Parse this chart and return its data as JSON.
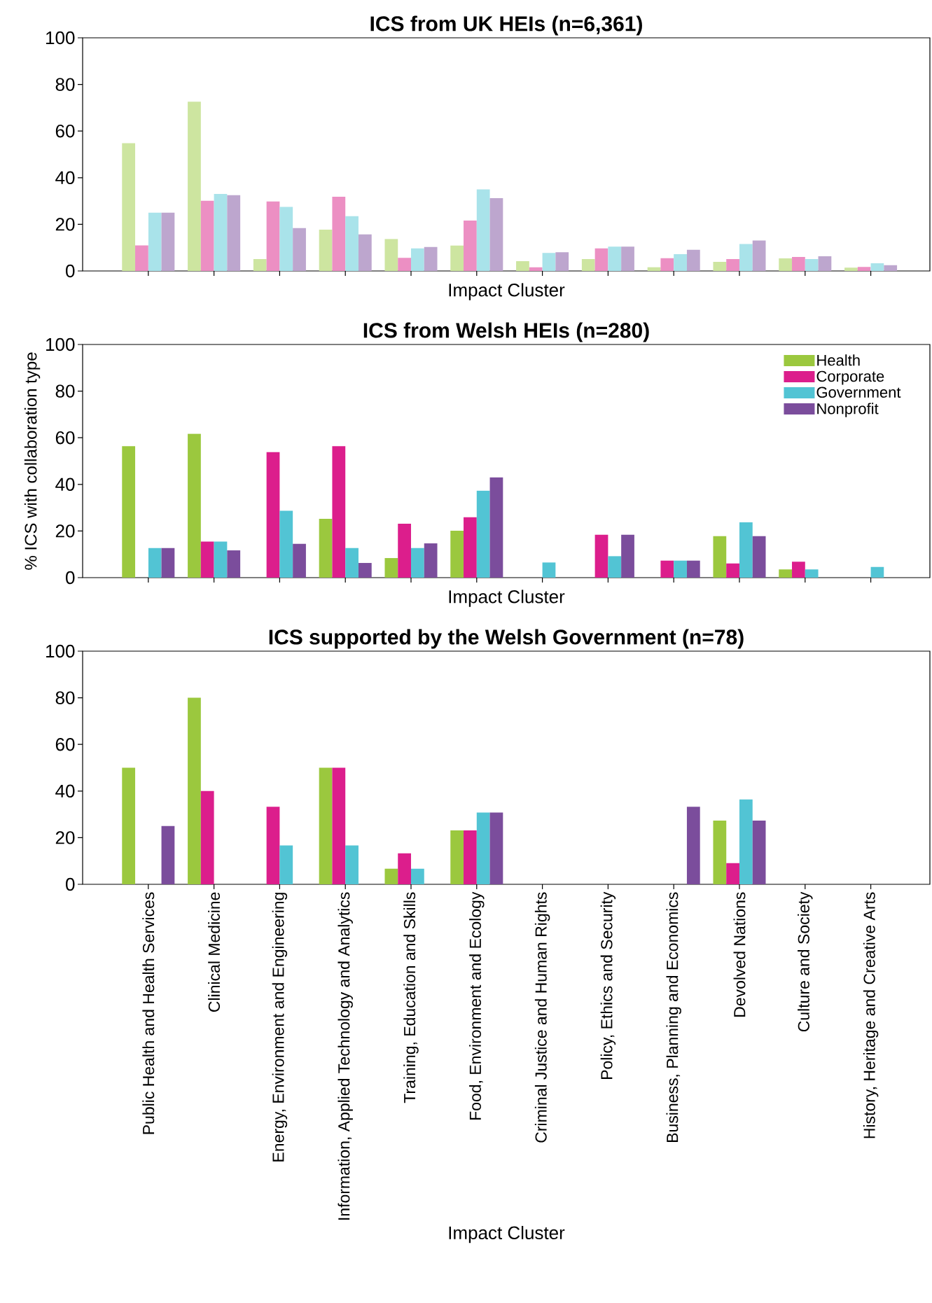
{
  "chart_data": [
    {
      "type": "bar",
      "title": "ICS from UK HEIs (n=6,361)",
      "xlabel": "Impact Cluster",
      "categories": [
        null,
        null,
        null,
        null,
        null,
        null,
        null,
        null,
        null,
        null,
        null,
        null
      ],
      "ylim": [
        0,
        100
      ],
      "yticks": [
        0,
        20,
        40,
        60,
        80,
        100
      ],
      "tick_labels": "y",
      "series": [
        {
          "color": "#cde5a0",
          "values": [
            54.8,
            72.6,
            5.1,
            17.7,
            13.7,
            10.9,
            4.2,
            5.1,
            1.6,
            3.9,
            5.4,
            1.4
          ]
        },
        {
          "color": "#ec8fc3",
          "values": [
            11,
            30.1,
            29.8,
            31.8,
            5.6,
            21.6,
            1.6,
            9.7,
            5.5,
            5.1,
            6.0,
            1.7
          ]
        },
        {
          "color": "#a9e3ea",
          "values": [
            25,
            33.0,
            27.5,
            23.5,
            9.7,
            35.0,
            7.7,
            10.4,
            7.2,
            11.6,
            5.1,
            3.3
          ]
        },
        {
          "color": "#bda6ce",
          "values": [
            25,
            32.5,
            18.4,
            15.7,
            10.3,
            31.2,
            8.0,
            10.4,
            9.1,
            13.1,
            6.3,
            2.5
          ]
        }
      ]
    },
    {
      "type": "bar",
      "title": "ICS from Welsh HEIs (n=280)",
      "xlabel": "Impact Cluster",
      "ylabel": "% ICS with collaboration type",
      "categories": [
        null,
        null,
        null,
        null,
        null,
        null,
        null,
        null,
        null,
        null,
        null,
        null
      ],
      "ylim": [
        0,
        100
      ],
      "yticks": [
        0,
        20,
        40,
        60,
        80,
        100
      ],
      "tick_labels": "y",
      "legend": "top right",
      "series": [
        {
          "name": "Health",
          "color": "#9bc83e",
          "values": [
            56.4,
            61.7,
            0,
            25.2,
            8.4,
            20.1,
            0,
            0,
            0,
            17.8,
            3.5,
            0
          ]
        },
        {
          "name": "Corporate",
          "color": "#dc1e8c",
          "values": [
            0,
            15.5,
            53.8,
            56.4,
            23.1,
            25.9,
            0,
            18.4,
            7.3,
            6.1,
            6.8,
            0
          ]
        },
        {
          "name": "Government",
          "color": "#52c4d4",
          "values": [
            12.7,
            15.5,
            28.7,
            12.7,
            12.7,
            37.3,
            6.5,
            9.2,
            7.3,
            23.7,
            3.5,
            4.6
          ]
        },
        {
          "name": "Nonprofit",
          "color": "#7b4d9c",
          "values": [
            12.7,
            11.7,
            14.5,
            6.3,
            14.7,
            43.0,
            0,
            18.4,
            7.3,
            17.8,
            0,
            0
          ]
        }
      ]
    },
    {
      "type": "bar",
      "title": "ICS supported by the Welsh Government (n=78)",
      "xlabel": "Impact Cluster",
      "categories": [
        "Public Health and Health Services",
        "Clinical Medicine",
        "Energy, Environment and Engineering",
        "Information, Applied Technology and Analytics",
        "Training, Education and Skills",
        "Food, Environment and Ecology",
        "Criminal Justice and Human Rights",
        "Policy, Ethics and Security",
        "Business, Planning and Economics",
        "Devolved Nations",
        "Culture and Society",
        "History, Heritage and Creative Arts"
      ],
      "ylim": [
        0,
        100
      ],
      "yticks": [
        0,
        20,
        40,
        60,
        80,
        100
      ],
      "series": [
        {
          "color": "#9bc83e",
          "values": [
            50,
            80,
            0,
            50,
            6.7,
            23.1,
            0,
            0,
            0,
            27.3,
            0,
            0
          ]
        },
        {
          "color": "#dc1e8c",
          "values": [
            0,
            40,
            33.3,
            50,
            13.3,
            23.1,
            0,
            0,
            0,
            9.1,
            0,
            0
          ]
        },
        {
          "color": "#52c4d4",
          "values": [
            0,
            0,
            16.7,
            16.7,
            6.7,
            30.8,
            0,
            0,
            0,
            36.4,
            0,
            0
          ]
        },
        {
          "color": "#7b4d9c",
          "values": [
            25,
            0,
            0,
            0,
            0,
            30.8,
            0,
            0,
            33.3,
            27.3,
            0,
            0
          ]
        }
      ]
    }
  ]
}
